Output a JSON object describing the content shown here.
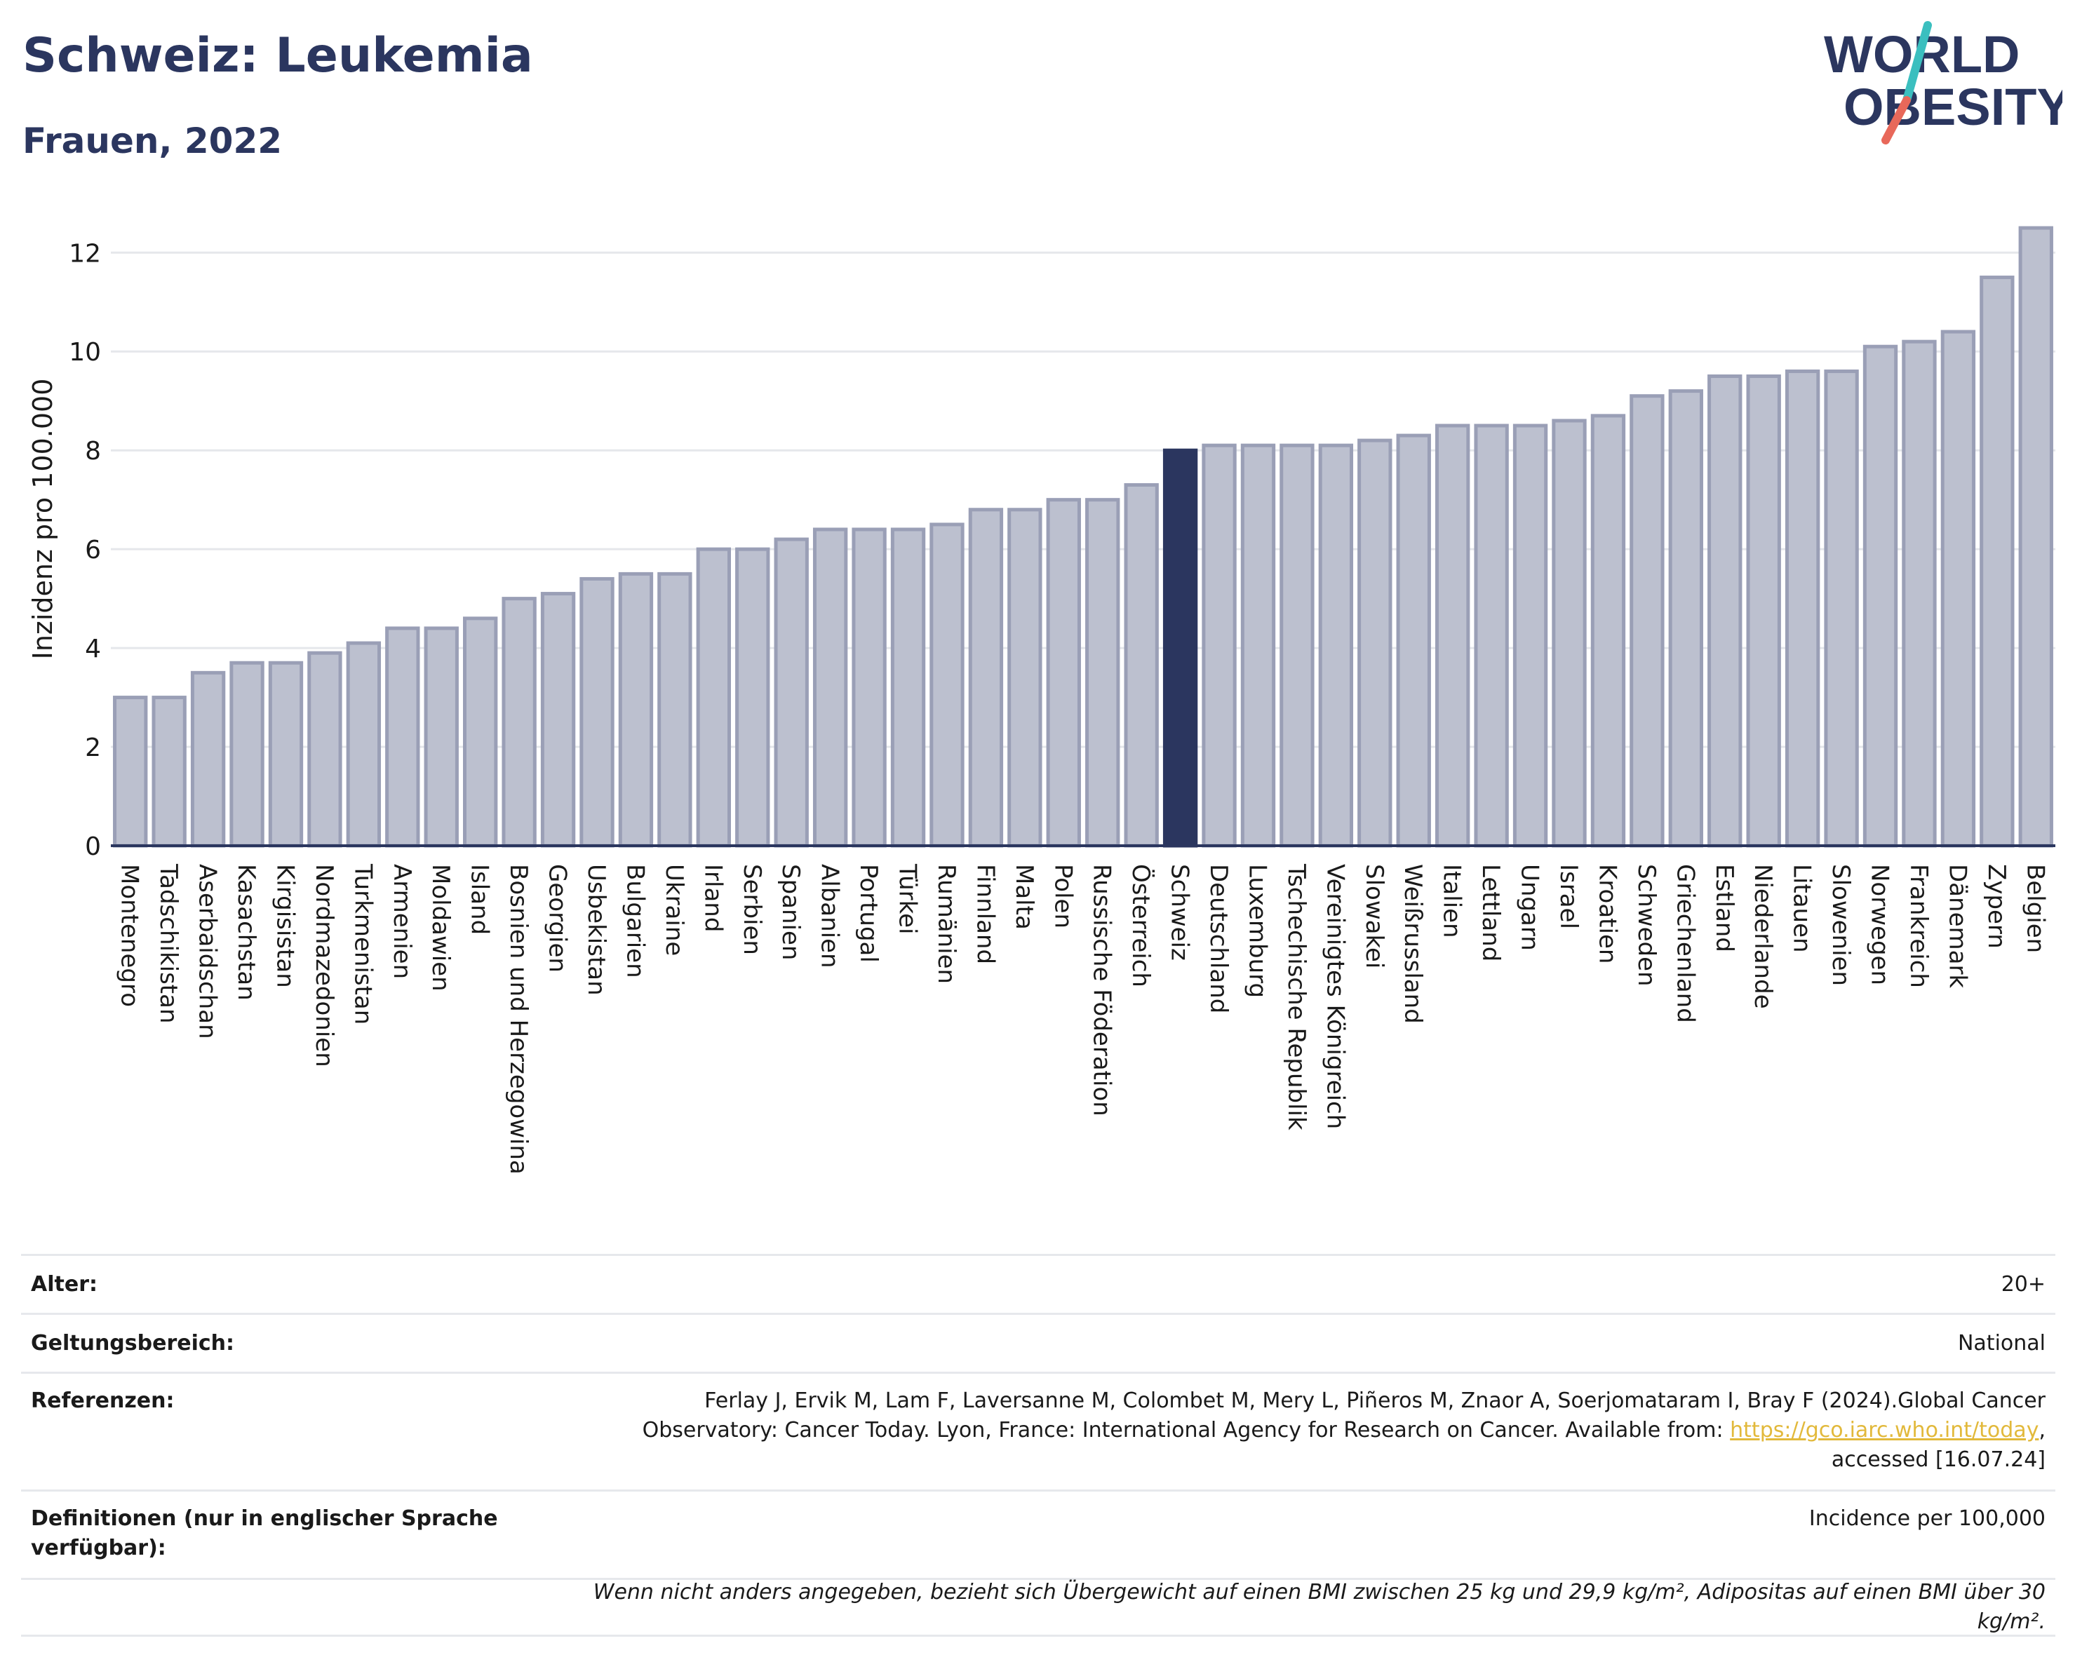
{
  "title": "Schweiz: Leukemia",
  "subtitle": "Frauen, 2022",
  "logo": {
    "line1": "WORLD",
    "line2": "OBESITY"
  },
  "colors": {
    "highlight": "#2b365f",
    "bar": "#bcc0cf",
    "bar_stroke": "#9a9fb6",
    "text": "#2b365f",
    "link": "#e2b93b"
  },
  "chart_data": {
    "type": "bar",
    "ylabel": "Inzidenz pro 100.000",
    "ylim": [
      0,
      12.6
    ],
    "yticks": [
      0,
      2,
      4,
      6,
      8,
      10,
      12
    ],
    "grid": true,
    "highlight": "Schweiz",
    "categories": [
      "Montenegro",
      "Tadschikistan",
      "Aserbaidschan",
      "Kasachstan",
      "Kirgisistan",
      "Nordmazedonien",
      "Turkmenistan",
      "Armenien",
      "Moldawien",
      "Island",
      "Bosnien und Herzegowina",
      "Georgien",
      "Usbekistan",
      "Bulgarien",
      "Ukraine",
      "Irland",
      "Serbien",
      "Spanien",
      "Albanien",
      "Portugal",
      "Türkei",
      "Rumänien",
      "Finnland",
      "Malta",
      "Polen",
      "Russische Föderation",
      "Österreich",
      "Schweiz",
      "Deutschland",
      "Luxemburg",
      "Tschechische Republik",
      "Vereinigtes Königreich",
      "Slowakei",
      "Weißrussland",
      "Italien",
      "Lettland",
      "Ungarn",
      "Israel",
      "Kroatien",
      "Schweden",
      "Griechenland",
      "Estland",
      "Niederlande",
      "Litauen",
      "Slowenien",
      "Norwegen",
      "Frankreich",
      "Dänemark",
      "Zypern",
      "Belgien"
    ],
    "values": [
      3.0,
      3.0,
      3.5,
      3.7,
      3.7,
      3.9,
      4.1,
      4.4,
      4.4,
      4.6,
      5.0,
      5.1,
      5.4,
      5.5,
      5.5,
      6.0,
      6.0,
      6.2,
      6.4,
      6.4,
      6.4,
      6.5,
      6.8,
      6.8,
      7.0,
      7.0,
      7.3,
      8.0,
      8.1,
      8.1,
      8.1,
      8.1,
      8.2,
      8.3,
      8.5,
      8.5,
      8.5,
      8.6,
      8.7,
      9.1,
      9.2,
      9.5,
      9.5,
      9.6,
      9.6,
      10.1,
      10.2,
      10.4,
      11.5,
      12.5
    ]
  },
  "info": {
    "age_label": "Alter:",
    "age_value": "20+",
    "scope_label": "Geltungsbereich:",
    "scope_value": "National",
    "ref_label": "Referenzen:",
    "ref_text_1": "Ferlay J, Ervik M, Lam F, Laversanne M, Colombet M, Mery L, Piñeros M, Znaor A, Soerjomataram I, Bray F (2024).Global Cancer Observatory: Cancer Today. Lyon, France: International Agency for Research on Cancer. Available from: ",
    "ref_link": "https://gco.iarc.who.int/today",
    "ref_text_2": ", accessed [16.07.24]",
    "def_label": "Definitionen (nur in englischer Sprache verfügbar):",
    "def_value": "Incidence per 100,000",
    "note": "Wenn nicht anders angegeben, bezieht sich Übergewicht auf einen BMI zwischen 25 kg und 29,9 kg/m², Adipositas auf einen BMI über 30 kg/m²."
  }
}
